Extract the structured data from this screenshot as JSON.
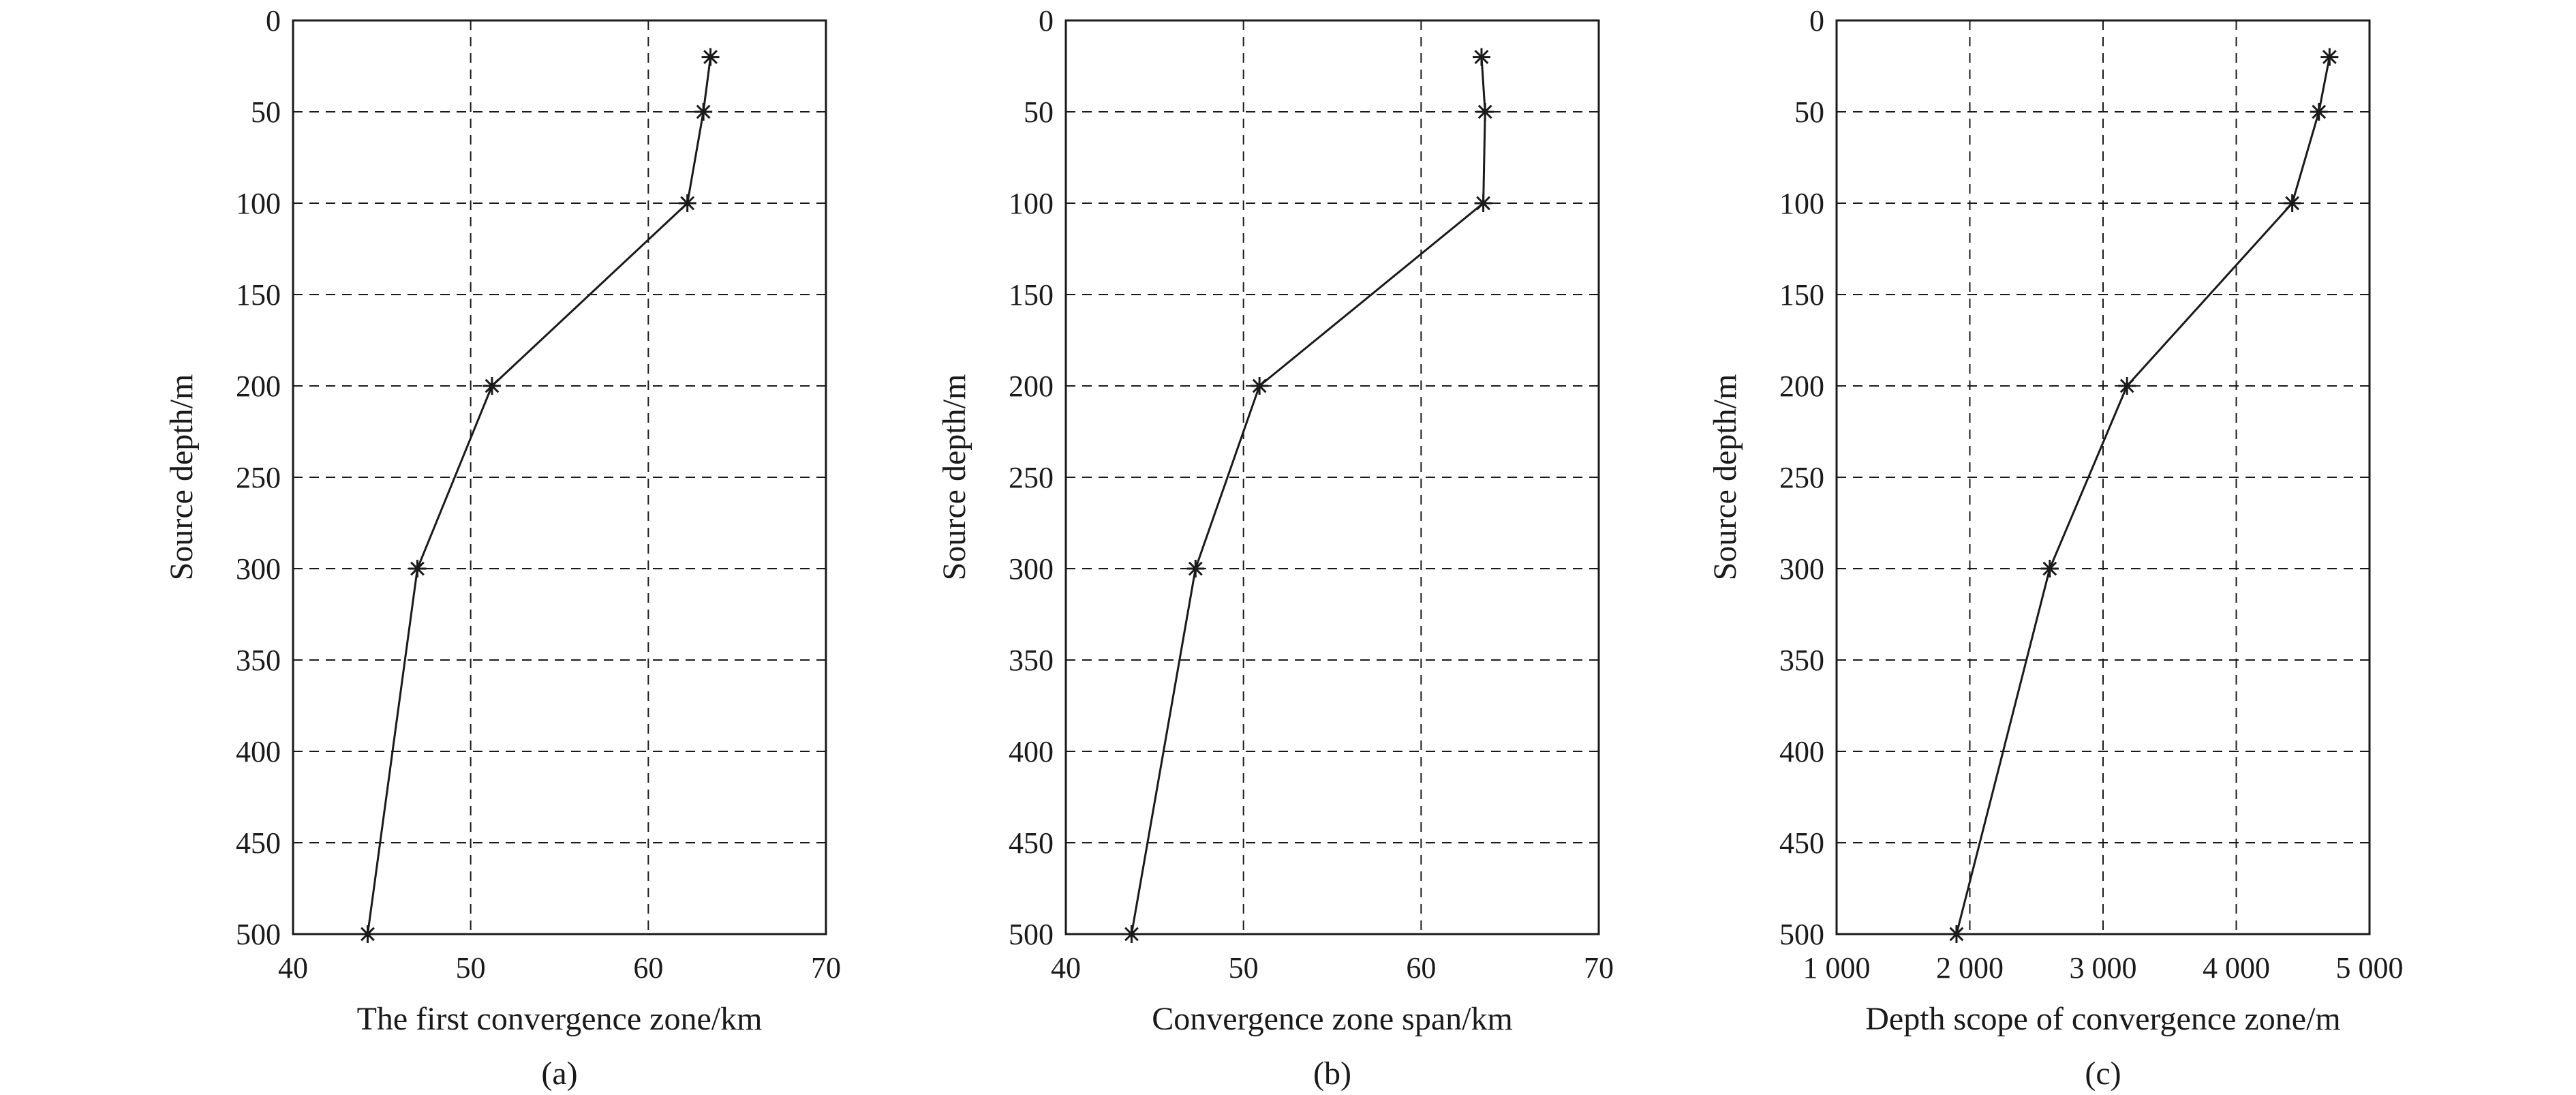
{
  "chart_data": [
    {
      "type": "line",
      "panel_label": "(a)",
      "xlabel": "The first convergence zone/km",
      "ylabel": "Source depth/m",
      "xlim": [
        40,
        70
      ],
      "ylim": [
        0,
        500
      ],
      "y_inverted": true,
      "x_ticks": [
        40,
        50,
        60,
        70
      ],
      "x_tick_labels": [
        "40",
        "50",
        "60",
        "70"
      ],
      "y_ticks": [
        0,
        50,
        100,
        150,
        200,
        250,
        300,
        350,
        400,
        450,
        500
      ],
      "y_tick_labels": [
        "0",
        "50",
        "100",
        "150",
        "200",
        "250",
        "300",
        "350",
        "400",
        "450",
        "500"
      ],
      "grid": true,
      "marker": "asterisk",
      "x": [
        63.5,
        63.1,
        62.2,
        51.2,
        47.0,
        44.2
      ],
      "y": [
        20,
        50,
        100,
        200,
        300,
        500
      ]
    },
    {
      "type": "line",
      "panel_label": "(b)",
      "xlabel": "Convergence zone span/km",
      "ylabel": "Source depth/m",
      "xlim": [
        40,
        70
      ],
      "ylim": [
        0,
        500
      ],
      "y_inverted": true,
      "x_ticks": [
        40,
        50,
        60,
        70
      ],
      "x_tick_labels": [
        "40",
        "50",
        "60",
        "70"
      ],
      "y_ticks": [
        0,
        50,
        100,
        150,
        200,
        250,
        300,
        350,
        400,
        450,
        500
      ],
      "y_tick_labels": [
        "0",
        "50",
        "100",
        "150",
        "200",
        "250",
        "300",
        "350",
        "400",
        "450",
        "500"
      ],
      "grid": true,
      "marker": "asterisk",
      "x": [
        63.4,
        63.6,
        63.5,
        50.9,
        47.3,
        43.7
      ],
      "y": [
        20,
        50,
        100,
        200,
        300,
        500
      ]
    },
    {
      "type": "line",
      "panel_label": "(c)",
      "xlabel": "Depth scope of convergence zone/m",
      "ylabel": "Source depth/m",
      "xlim": [
        1000,
        5000
      ],
      "ylim": [
        0,
        500
      ],
      "y_inverted": true,
      "x_ticks": [
        1000,
        2000,
        3000,
        4000,
        5000
      ],
      "x_tick_labels": [
        "1 000",
        "2 000",
        "3 000",
        "4 000",
        "5 000"
      ],
      "y_ticks": [
        0,
        50,
        100,
        150,
        200,
        250,
        300,
        350,
        400,
        450,
        500
      ],
      "y_tick_labels": [
        "0",
        "50",
        "100",
        "150",
        "200",
        "250",
        "300",
        "350",
        "400",
        "450",
        "500"
      ],
      "grid": true,
      "marker": "asterisk",
      "x": [
        4700,
        4620,
        4420,
        3180,
        2600,
        1900
      ],
      "y": [
        20,
        50,
        100,
        200,
        300,
        500
      ]
    }
  ]
}
